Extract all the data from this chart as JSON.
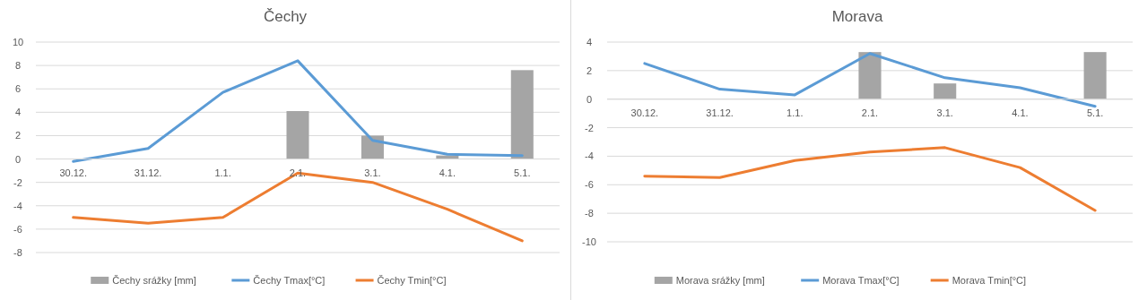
{
  "chart_data": [
    {
      "type": "bar",
      "title": "Čechy",
      "categories": [
        "30.12.",
        "31.12.",
        "1.1.",
        "2.1.",
        "3.1.",
        "4.1.",
        "5.1."
      ],
      "ylim": [
        -8,
        10
      ],
      "yticks": [
        -8,
        -6,
        -4,
        -2,
        0,
        2,
        4,
        6,
        8,
        10
      ],
      "grid": "y",
      "legend": "bottom",
      "series": [
        {
          "name": "Čechy srážky [mm]",
          "color": "#a5a5a5",
          "values": [
            null,
            null,
            null,
            4.1,
            2.0,
            0.3,
            7.6
          ]
        },
        {
          "name": "Čechy Tmax[°C]",
          "type": "line",
          "color": "#5b9bd5",
          "values": [
            -0.2,
            0.9,
            5.7,
            8.4,
            1.6,
            0.4,
            0.3
          ]
        },
        {
          "name": "Čechy Tmin[°C]",
          "type": "line",
          "color": "#ed7d31",
          "values": [
            -5.0,
            -5.5,
            -5.0,
            -1.2,
            -2.0,
            -4.3,
            -7.0
          ]
        }
      ]
    },
    {
      "type": "bar",
      "title": "Morava",
      "categories": [
        "30.12.",
        "31.12.",
        "1.1.",
        "2.1.",
        "3.1.",
        "4.1.",
        "5.1."
      ],
      "ylim": [
        -10,
        4
      ],
      "yticks": [
        -10,
        -8,
        -6,
        -4,
        -2,
        0,
        2,
        4
      ],
      "grid": "y",
      "legend": "bottom",
      "series": [
        {
          "name": "Morava srážky [mm]",
          "color": "#a5a5a5",
          "values": [
            null,
            null,
            null,
            3.3,
            1.1,
            null,
            3.3
          ]
        },
        {
          "name": "Morava Tmax[°C]",
          "type": "line",
          "color": "#5b9bd5",
          "values": [
            2.5,
            0.7,
            0.3,
            3.2,
            1.5,
            0.8,
            -0.5
          ]
        },
        {
          "name": "Morava Tmin[°C]",
          "type": "line",
          "color": "#ed7d31",
          "values": [
            -5.4,
            -5.5,
            -4.3,
            -3.7,
            -3.4,
            -4.8,
            -7.8
          ]
        }
      ]
    }
  ]
}
